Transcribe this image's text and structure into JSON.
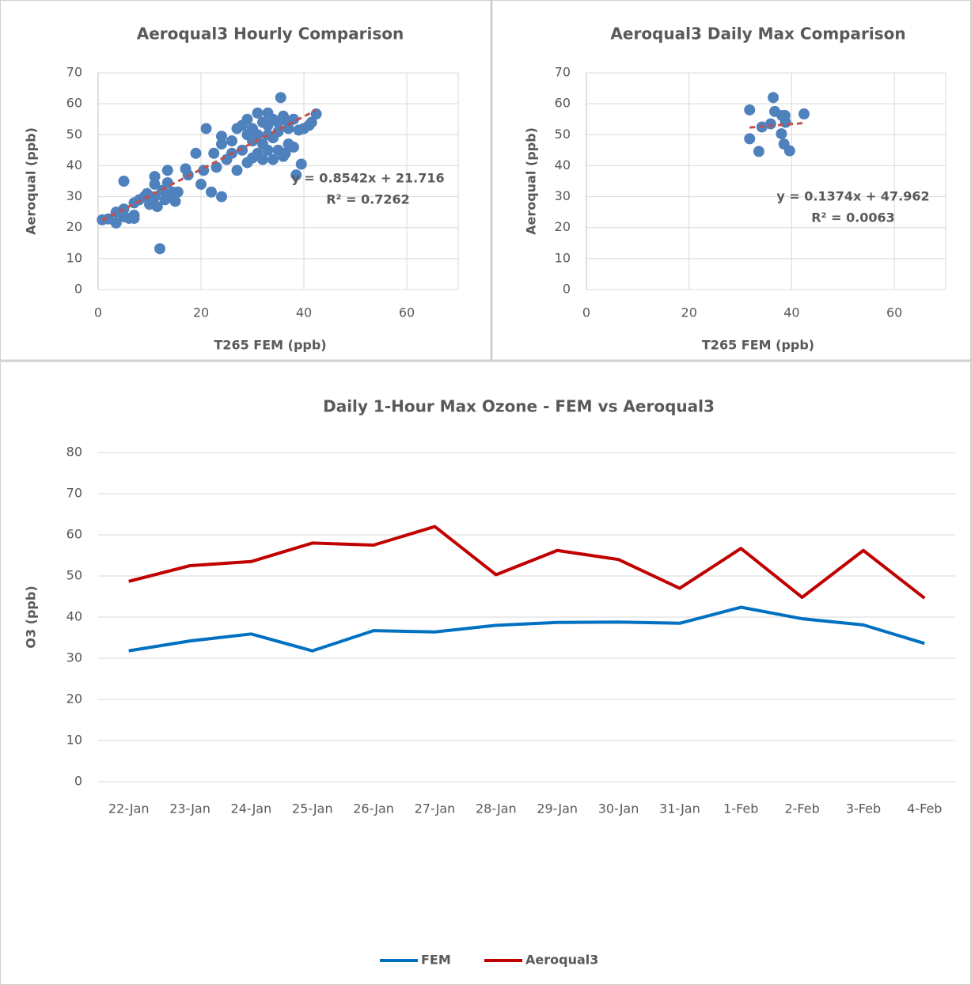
{
  "chart_data": [
    {
      "type": "scatter",
      "title": "Aeroqual3 Hourly Comparison",
      "x_label": "T265 FEM (ppb)",
      "y_label": "Aeroqual (ppb)",
      "x": [
        0.8,
        2,
        3.5,
        3.5,
        5,
        5,
        5,
        6,
        7,
        7,
        7,
        8,
        9,
        9.5,
        10,
        11,
        11,
        11,
        11.5,
        12,
        12.5,
        13,
        13.5,
        13.5,
        14,
        14.5,
        15,
        15.5,
        17,
        17.5,
        19,
        20,
        20.5,
        21,
        22,
        22.5,
        23,
        24,
        24,
        24,
        25,
        26,
        26,
        27,
        27,
        28,
        28,
        29,
        29,
        30,
        30,
        31,
        31,
        31,
        32,
        32,
        32,
        33,
        33,
        33,
        34,
        34,
        34,
        35,
        35,
        35.5,
        35,
        36,
        36,
        37,
        37,
        37,
        38,
        38,
        38.5,
        39,
        39.5,
        40,
        41,
        41.5,
        42.4,
        36.4,
        30,
        33,
        29
      ],
      "values": [
        22.5,
        22.8,
        21.5,
        25,
        35,
        26,
        23.5,
        23,
        24,
        23,
        28,
        29,
        30,
        31,
        27.5,
        34,
        36.5,
        30,
        26.8,
        13.2,
        32,
        29,
        38.5,
        34.5,
        30,
        31.5,
        28.5,
        31.5,
        39,
        37,
        44,
        34,
        38.5,
        52,
        31.5,
        44,
        39.5,
        30,
        47,
        49.5,
        42,
        44,
        48,
        38.5,
        52,
        53,
        45,
        55,
        41,
        48,
        52,
        57,
        44,
        50,
        54,
        42,
        47,
        57,
        53,
        45,
        55,
        49,
        42,
        51,
        45,
        62,
        54,
        56,
        43,
        47,
        52,
        54,
        55,
        46,
        37,
        51.5,
        40.5,
        52,
        53,
        54,
        56.7,
        44,
        42.5,
        50,
        50
      ],
      "color": "#4f81bd",
      "xlim": [
        0,
        70
      ],
      "xticks": [
        0,
        20,
        40,
        60
      ],
      "ylim": [
        0,
        70
      ],
      "yticks": [
        0,
        10,
        20,
        30,
        40,
        50,
        60,
        70
      ],
      "grid": true,
      "trendline": {
        "slope": 0.8542,
        "intercept": 21.716,
        "color": "#c0504d",
        "equation": "y = 0.8542x + 21.716",
        "r2": "R² = 0.7262"
      }
    },
    {
      "type": "scatter",
      "title": "Aeroqual3 Daily Max Comparison",
      "x_label": "T265 FEM (ppb)",
      "y_label": "Aeroqual (ppb)",
      "x": [
        31.8,
        34.2,
        35.9,
        31.8,
        36.7,
        36.4,
        38.0,
        38.7,
        38.8,
        38.5,
        42.4,
        39.6,
        38.1,
        33.6
      ],
      "values": [
        48.7,
        52.5,
        53.5,
        58.0,
        57.5,
        62.0,
        50.3,
        56.2,
        54.0,
        47.0,
        56.7,
        44.8,
        56.2,
        44.6
      ],
      "color": "#4f81bd",
      "xlim": [
        0,
        70
      ],
      "xticks": [
        0,
        20,
        40,
        60
      ],
      "ylim": [
        0,
        70
      ],
      "yticks": [
        0,
        10,
        20,
        30,
        40,
        50,
        60,
        70
      ],
      "grid": true,
      "trendline": {
        "slope": 0.1374,
        "intercept": 47.962,
        "color": "#c0504d",
        "equation": "y = 0.1374x + 47.962",
        "r2": "R² = 0.0063"
      }
    },
    {
      "type": "line",
      "title": "Daily 1-Hour Max Ozone - FEM vs Aeroqual3",
      "y_label": "O3 (ppb)",
      "categories": [
        "22-Jan",
        "23-Jan",
        "24-Jan",
        "25-Jan",
        "26-Jan",
        "27-Jan",
        "28-Jan",
        "29-Jan",
        "30-Jan",
        "31-Jan",
        "1-Feb",
        "2-Feb",
        "3-Feb",
        "4-Feb"
      ],
      "series": [
        {
          "name": "FEM",
          "color": "#0070c0",
          "values": [
            31.8,
            34.2,
            35.9,
            31.8,
            36.7,
            36.4,
            38.0,
            38.7,
            38.8,
            38.5,
            42.4,
            39.6,
            38.1,
            33.6
          ]
        },
        {
          "name": "Aeroqual3",
          "color": "#c00000",
          "values": [
            48.7,
            52.5,
            53.5,
            58.0,
            57.5,
            62.0,
            50.3,
            56.2,
            54.0,
            47.0,
            56.7,
            44.8,
            56.2,
            44.6
          ]
        }
      ],
      "ylim": [
        0,
        80
      ],
      "yticks": [
        0,
        10,
        20,
        30,
        40,
        50,
        60,
        70,
        80
      ],
      "grid": true,
      "legend": "bottom"
    }
  ]
}
